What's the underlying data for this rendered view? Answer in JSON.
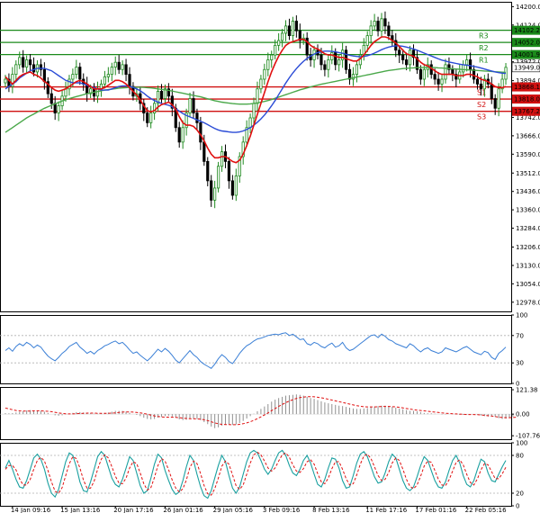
{
  "chart_data": {
    "type": "candlestick",
    "colors": {
      "bull": "#1f8a1f",
      "bear": "#000000",
      "ma_fast": "#e01010",
      "ma_mid": "#2a4bd6",
      "ma_slow": "#4aa84a",
      "resistance": "#1a8a1a",
      "support": "#d01010",
      "rsi": "#3a7fd6",
      "macd_signal": "#e01010",
      "macd_hist": "#909090",
      "stoch_k": "#1aa0a0",
      "stoch_d": "#e01010"
    },
    "main": {
      "ylim": [
        12940,
        14220
      ],
      "y_ticks": [
        "14200.0",
        "14124.0",
        "14048.0",
        "13972.0",
        "13894.0",
        "13818.0",
        "13742.0",
        "13666.0",
        "13590.0",
        "13512.0",
        "13436.0",
        "13360.0",
        "13284.0",
        "13206.0",
        "13130.0",
        "13054.0",
        "12978.0"
      ],
      "current_price": "13949.0",
      "levels": [
        {
          "name": "R3",
          "value": 14102.2,
          "label": "14102.2",
          "kind": "resistance"
        },
        {
          "name": "R2",
          "value": 14052.0,
          "label": "14052.0",
          "kind": "resistance"
        },
        {
          "name": "R1",
          "value": 14001.9,
          "label": "14001.9",
          "kind": "resistance"
        },
        {
          "name": "S1",
          "value": 13868.1,
          "label": "13868.1",
          "kind": "support"
        },
        {
          "name": "S2",
          "value": 13818.0,
          "label": "13818.0",
          "kind": "support"
        },
        {
          "name": "S3",
          "value": 13767.2,
          "label": "13767.2",
          "kind": "support"
        }
      ],
      "close": [
        13900,
        13870,
        13920,
        13960,
        13990,
        13950,
        13980,
        13960,
        13930,
        13960,
        13940,
        13890,
        13840,
        13800,
        13760,
        13790,
        13830,
        13860,
        13900,
        13920,
        13950,
        13900,
        13880,
        13840,
        13860,
        13830,
        13860,
        13880,
        13910,
        13920,
        13950,
        13970,
        13940,
        13960,
        13920,
        13870,
        13830,
        13840,
        13800,
        13760,
        13720,
        13760,
        13800,
        13850,
        13820,
        13860,
        13830,
        13780,
        13700,
        13640,
        13700,
        13760,
        13820,
        13760,
        13720,
        13640,
        13560,
        13480,
        13400,
        13450,
        13540,
        13600,
        13560,
        13480,
        13420,
        13500,
        13580,
        13640,
        13700,
        13740,
        13800,
        13860,
        13900,
        13940,
        13980,
        14000,
        14040,
        14060,
        14090,
        14120,
        14080,
        14140,
        14100,
        14060,
        14070,
        14000,
        13980,
        14020,
        14000,
        13960,
        13940,
        13980,
        14010,
        13960,
        13980,
        14020,
        13940,
        13900,
        13920,
        13960,
        14000,
        14040,
        14080,
        14120,
        14140,
        14100,
        14150,
        14120,
        14080,
        14060,
        14020,
        14000,
        13980,
        13960,
        14020,
        13990,
        13940,
        13900,
        13940,
        13960,
        13920,
        13900,
        13880,
        13900,
        13960,
        13940,
        13920,
        13900,
        13930,
        13960,
        13980,
        13940,
        13900,
        13880,
        13860,
        13900,
        13880,
        13820,
        13780,
        13860,
        13900,
        13949
      ],
      "ma_fast": [
        13910,
        13895,
        13880,
        13895,
        13910,
        13920,
        13925,
        13930,
        13920,
        13915,
        13905,
        13890,
        13880,
        13865,
        13855,
        13850,
        13855,
        13860,
        13870,
        13880,
        13890,
        13895,
        13890,
        13880,
        13870,
        13860,
        13860,
        13860,
        13865,
        13875,
        13885,
        13895,
        13895,
        13890,
        13880,
        13865,
        13850,
        13835,
        13815,
        13790,
        13770,
        13765,
        13770,
        13785,
        13795,
        13800,
        13805,
        13795,
        13775,
        13745,
        13720,
        13710,
        13710,
        13705,
        13690,
        13670,
        13645,
        13615,
        13590,
        13575,
        13575,
        13580,
        13580,
        13570,
        13560,
        13555,
        13565,
        13590,
        13625,
        13665,
        13710,
        13755,
        13800,
        13845,
        13890,
        13930,
        13965,
        13995,
        14020,
        14040,
        14050,
        14055,
        14060,
        14065,
        14065,
        14055,
        14040,
        14030,
        14025,
        14015,
        14005,
        14000,
        14000,
        13995,
        13990,
        13990,
        13985,
        13980,
        13975,
        13975,
        13985,
        14000,
        14020,
        14040,
        14055,
        14065,
        14075,
        14075,
        14070,
        14060,
        14050,
        14035,
        14020,
        14005,
        14000,
        13995,
        13985,
        13970,
        13960,
        13955,
        13945,
        13935,
        13925,
        13920,
        13920,
        13920,
        13920,
        13915,
        13915,
        13915,
        13920,
        13920,
        13915,
        13910,
        13900,
        13895,
        13890,
        13880,
        13870,
        13865,
        13865,
        13870
      ],
      "ma_mid": [
        13860,
        13870,
        13880,
        13890,
        13905,
        13915,
        13925,
        13935,
        13940,
        13945,
        13945,
        13945,
        13940,
        13935,
        13925,
        13915,
        13905,
        13895,
        13890,
        13885,
        13885,
        13885,
        13880,
        13875,
        13870,
        13865,
        13860,
        13855,
        13855,
        13855,
        13860,
        13865,
        13870,
        13872,
        13872,
        13870,
        13866,
        13860,
        13852,
        13842,
        13830,
        13820,
        13812,
        13806,
        13800,
        13796,
        13792,
        13786,
        13778,
        13768,
        13758,
        13750,
        13744,
        13738,
        13732,
        13726,
        13720,
        13712,
        13704,
        13696,
        13690,
        13686,
        13684,
        13682,
        13680,
        13680,
        13682,
        13686,
        13692,
        13700,
        13710,
        13722,
        13736,
        13752,
        13770,
        13790,
        13812,
        13836,
        13860,
        13884,
        13906,
        13926,
        13944,
        13960,
        13974,
        13986,
        13996,
        14004,
        14010,
        14014,
        14016,
        14016,
        14015,
        14013,
        14010,
        14007,
        14003,
        13999,
        13996,
        13994,
        13993,
        13994,
        13997,
        14002,
        14008,
        14015,
        14022,
        14028,
        14033,
        14036,
        14038,
        14038,
        14036,
        14033,
        14029,
        14025,
        14020,
        14014,
        14008,
        14002,
        13996,
        13990,
        13984,
        13979,
        13975,
        13971,
        13968,
        13965,
        13962,
        13960,
        13958,
        13956,
        13953,
        13950,
        13946,
        13942,
        13938,
        13934,
        13930,
        13927,
        13925,
        13924
      ],
      "ma_slow": [
        13680,
        13690,
        13700,
        13710,
        13720,
        13730,
        13740,
        13748,
        13756,
        13764,
        13772,
        13780,
        13786,
        13792,
        13798,
        13804,
        13810,
        13815,
        13820,
        13824,
        13828,
        13832,
        13836,
        13840,
        13843,
        13846,
        13849,
        13852,
        13855,
        13857,
        13859,
        13861,
        13863,
        13864,
        13865,
        13866,
        13867,
        13867,
        13867,
        13866,
        13865,
        13864,
        13862,
        13860,
        13858,
        13856,
        13854,
        13851,
        13848,
        13845,
        13842,
        13839,
        13836,
        13833,
        13830,
        13827,
        13823,
        13819,
        13815,
        13811,
        13808,
        13805,
        13803,
        13801,
        13799,
        13798,
        13797,
        13797,
        13797,
        13798,
        13800,
        13802,
        13805,
        13808,
        13812,
        13816,
        13821,
        13826,
        13831,
        13836,
        13841,
        13846,
        13851,
        13856,
        13860,
        13864,
        13868,
        13872,
        13876,
        13879,
        13882,
        13885,
        13888,
        13891,
        13894,
        13897,
        13900,
        13903,
        13906,
        13909,
        13912,
        13915,
        13918,
        13921,
        13924,
        13927,
        13930,
        13933,
        13936,
        13938,
        13940,
        13942,
        13944,
        13945,
        13946,
        13947,
        13948,
        13948,
        13948,
        13948,
        13948,
        13948,
        13947,
        13946,
        13945,
        13944,
        13943,
        13942,
        13941,
        13940,
        13939,
        13938,
        13937,
        13936,
        13935,
        13934,
        13933,
        13932,
        13931,
        13930,
        13929,
        13928
      ],
      "x_labels": [
        "14 Jan 09:16",
        "15 Jan 13:16",
        "20 Jan 17:16",
        "26 Jan 01:16",
        "29 Jan 05:16",
        "3 Feb 09:16",
        "8 Feb 13:16",
        "11 Feb 17:16",
        "17 Feb 01:16",
        "22 Feb 05:16"
      ]
    },
    "rsi": {
      "ylim": [
        0,
        100
      ],
      "y_ticks": [
        "100",
        "70",
        "30",
        "0"
      ],
      "values": [
        48,
        52,
        47,
        54,
        58,
        55,
        60,
        57,
        52,
        56,
        53,
        46,
        40,
        36,
        33,
        38,
        44,
        48,
        54,
        57,
        60,
        53,
        49,
        44,
        47,
        43,
        48,
        51,
        55,
        57,
        60,
        62,
        58,
        60,
        55,
        49,
        44,
        46,
        41,
        37,
        33,
        38,
        44,
        50,
        46,
        51,
        47,
        41,
        34,
        30,
        36,
        42,
        48,
        42,
        38,
        32,
        28,
        25,
        22,
        28,
        36,
        42,
        38,
        32,
        29,
        36,
        44,
        50,
        55,
        58,
        62,
        65,
        66,
        68,
        70,
        71,
        72,
        71,
        73,
        74,
        70,
        72,
        68,
        64,
        65,
        58,
        56,
        60,
        58,
        54,
        52,
        56,
        59,
        53,
        55,
        60,
        52,
        48,
        50,
        54,
        58,
        62,
        66,
        70,
        71,
        67,
        72,
        69,
        64,
        62,
        58,
        56,
        54,
        52,
        58,
        55,
        50,
        46,
        50,
        52,
        48,
        46,
        44,
        46,
        52,
        50,
        48,
        46,
        49,
        52,
        54,
        50,
        46,
        44,
        42,
        47,
        45,
        38,
        35,
        44,
        48,
        53
      ]
    },
    "macd": {
      "ylim": [
        -125,
        135
      ],
      "y_ticks": [
        "121.38",
        "0.00",
        "-107.76"
      ],
      "hist": [
        5,
        4,
        5,
        8,
        12,
        14,
        18,
        20,
        18,
        18,
        16,
        12,
        6,
        0,
        -6,
        -8,
        -6,
        -2,
        2,
        6,
        10,
        10,
        8,
        4,
        4,
        2,
        2,
        4,
        6,
        8,
        12,
        16,
        16,
        16,
        12,
        6,
        0,
        -4,
        -10,
        -18,
        -24,
        -26,
        -24,
        -18,
        -14,
        -10,
        -8,
        -12,
        -18,
        -26,
        -30,
        -28,
        -22,
        -22,
        -24,
        -30,
        -40,
        -50,
        -62,
        -70,
        -66,
        -58,
        -52,
        -52,
        -54,
        -52,
        -44,
        -34,
        -22,
        -10,
        2,
        14,
        26,
        38,
        50,
        62,
        72,
        80,
        86,
        92,
        94,
        96,
        98,
        96,
        92,
        86,
        80,
        76,
        70,
        64,
        58,
        54,
        50,
        46,
        42,
        40,
        36,
        32,
        28,
        26,
        26,
        28,
        30,
        34,
        38,
        40,
        42,
        42,
        40,
        36,
        32,
        28,
        24,
        20,
        16,
        16,
        14,
        10,
        6,
        4,
        4,
        2,
        0,
        -2,
        -2,
        0,
        0,
        -2,
        -4,
        -4,
        -2,
        0,
        0,
        -2,
        -6,
        -10,
        -12,
        -12,
        -14,
        -20,
        -24,
        -22,
        -18,
        -12
      ],
      "signal": [
        30,
        26,
        22,
        18,
        16,
        15,
        15,
        15,
        16,
        16,
        16,
        15,
        14,
        12,
        9,
        6,
        3,
        2,
        1,
        1,
        2,
        3,
        4,
        5,
        5,
        5,
        4,
        4,
        4,
        4,
        5,
        6,
        8,
        10,
        11,
        11,
        10,
        8,
        6,
        3,
        -1,
        -5,
        -9,
        -12,
        -14,
        -15,
        -15,
        -15,
        -16,
        -18,
        -20,
        -22,
        -23,
        -23,
        -24,
        -25,
        -28,
        -32,
        -38,
        -44,
        -48,
        -51,
        -52,
        -52,
        -53,
        -53,
        -51,
        -48,
        -44,
        -38,
        -31,
        -23,
        -14,
        -4,
        6,
        17,
        28,
        38,
        48,
        57,
        65,
        72,
        78,
        82,
        85,
        87,
        87,
        86,
        84,
        81,
        78,
        74,
        70,
        66,
        62,
        58,
        54,
        50,
        46,
        42,
        39,
        37,
        36,
        36,
        36,
        37,
        38,
        38,
        38,
        37,
        36,
        34,
        31,
        28,
        25,
        22,
        20,
        18,
        16,
        14,
        12,
        10,
        8,
        6,
        4,
        3,
        2,
        1,
        0,
        -1,
        -2,
        -2,
        -2,
        -3,
        -4,
        -6,
        -8,
        -10,
        -12,
        -15,
        -17,
        -18,
        -18,
        -17,
        -15
      ]
    },
    "stoch": {
      "ylim": [
        0,
        100
      ],
      "y_ticks": [
        "100",
        "80",
        "20",
        "0"
      ],
      "k": [
        60,
        72,
        58,
        42,
        30,
        28,
        40,
        58,
        76,
        82,
        74,
        58,
        36,
        20,
        14,
        26,
        48,
        70,
        84,
        80,
        62,
        38,
        24,
        22,
        38,
        58,
        78,
        86,
        80,
        62,
        44,
        34,
        30,
        42,
        60,
        78,
        72,
        52,
        32,
        20,
        24,
        44,
        66,
        82,
        76,
        56,
        40,
        26,
        18,
        22,
        40,
        62,
        80,
        72,
        50,
        30,
        16,
        12,
        24,
        44,
        64,
        80,
        70,
        48,
        28,
        20,
        30,
        50,
        70,
        84,
        88,
        84,
        72,
        58,
        50,
        58,
        72,
        84,
        88,
        80,
        64,
        52,
        48,
        58,
        72,
        80,
        68,
        50,
        34,
        30,
        42,
        60,
        76,
        74,
        60,
        40,
        28,
        30,
        48,
        68,
        82,
        86,
        78,
        62,
        46,
        36,
        38,
        52,
        70,
        82,
        76,
        58,
        40,
        28,
        24,
        30,
        46,
        64,
        78,
        72,
        56,
        40,
        30,
        28,
        38,
        56,
        72,
        80,
        68,
        48,
        34,
        30,
        40,
        58,
        74,
        70,
        52,
        40,
        38,
        50,
        62,
        72
      ],
      "d": [
        58,
        64,
        64,
        57,
        43,
        33,
        33,
        42,
        58,
        72,
        77,
        71,
        56,
        38,
        23,
        20,
        29,
        48,
        67,
        78,
        75,
        60,
        41,
        28,
        28,
        39,
        58,
        74,
        81,
        76,
        62,
        47,
        36,
        35,
        44,
        60,
        70,
        67,
        52,
        35,
        25,
        29,
        45,
        64,
        75,
        71,
        57,
        41,
        28,
        22,
        27,
        41,
        61,
        71,
        67,
        51,
        32,
        19,
        17,
        27,
        44,
        63,
        71,
        66,
        49,
        32,
        26,
        33,
        50,
        68,
        81,
        85,
        81,
        71,
        60,
        55,
        60,
        71,
        81,
        84,
        77,
        65,
        55,
        53,
        59,
        70,
        73,
        66,
        51,
        38,
        35,
        44,
        59,
        70,
        70,
        58,
        43,
        33,
        35,
        49,
        66,
        79,
        82,
        75,
        62,
        48,
        40,
        42,
        53,
        68,
        76,
        72,
        58,
        42,
        31,
        27,
        33,
        47,
        63,
        71,
        69,
        56,
        42,
        33,
        32,
        41,
        55,
        69,
        73,
        65,
        50,
        37,
        33,
        43,
        57,
        67,
        65,
        54,
        43,
        43,
        51,
        61
      ]
    }
  }
}
